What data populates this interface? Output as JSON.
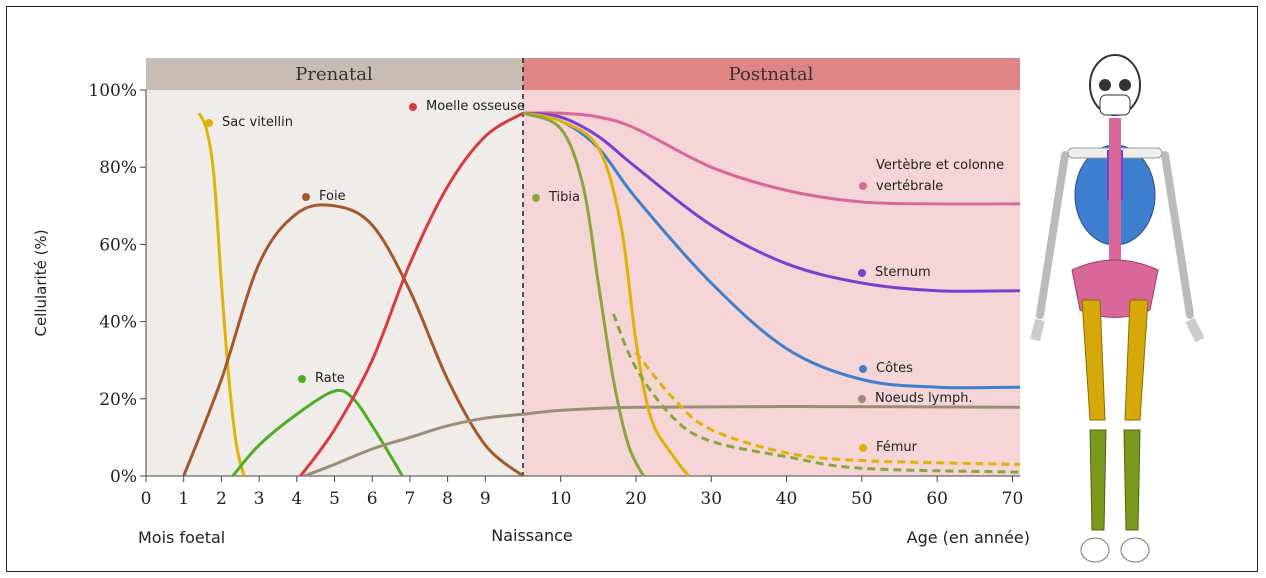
{
  "chart_data": {
    "type": "line",
    "y_label": "Cellularité (%)",
    "band_labels": [
      "Prenatal",
      "Postnatal"
    ],
    "x_label": "Mois foetal",
    "x2_label": "Age (en année)",
    "divider_label": "Naissance",
    "ylim": [
      0,
      100
    ],
    "yticks": [
      {
        "value": 0,
        "label": "0%"
      },
      {
        "value": 20,
        "label": "20%"
      },
      {
        "value": 40,
        "label": "40%"
      },
      {
        "value": 60,
        "label": "60%"
      },
      {
        "value": 80,
        "label": "80%"
      },
      {
        "value": 100,
        "label": "100%"
      }
    ],
    "xlim": [
      0,
      10
    ],
    "xticks": [
      0,
      1,
      2,
      3,
      4,
      5,
      6,
      7,
      8,
      9
    ],
    "x2lim": [
      5,
      71
    ],
    "x2ticks": [
      10,
      20,
      30,
      40,
      50,
      60,
      70
    ],
    "series": [
      {
        "name": "Sac vitellin",
        "color": "#e2b106",
        "segments": [
          {
            "axis": "x",
            "x": [
              1.4,
              1.6,
              1.8,
              2.0,
              2.2,
              2.4,
              2.6
            ],
            "values": [
              94,
              90,
              78,
              50,
              25,
              8,
              0
            ]
          }
        ]
      },
      {
        "name": "Foie",
        "color": "#a3582a",
        "segments": [
          {
            "axis": "x",
            "x": [
              1.0,
              2,
              3,
              4,
              5,
              6,
              7,
              8,
              9,
              10
            ],
            "values": [
              0,
              25,
              55,
              68,
              70,
              65,
              48,
              25,
              8,
              0
            ]
          }
        ]
      },
      {
        "name": "Rate",
        "color": "#4caf22",
        "segments": [
          {
            "axis": "x",
            "x": [
              2.3,
              3,
              4,
              5,
              5.5,
              6,
              6.5,
              6.8
            ],
            "values": [
              0,
              8,
              16,
              22,
              20,
              13,
              5,
              0
            ]
          }
        ]
      },
      {
        "name": "Moelle osseuse",
        "color": "#d83a3e",
        "segments": [
          {
            "axis": "x",
            "x": [
              4.1,
              5,
              6,
              7,
              8,
              9,
              10
            ],
            "values": [
              0,
              12,
              30,
              55,
              75,
              88,
              94
            ]
          }
        ]
      },
      {
        "name": "Noeuds lymph.",
        "color": "#9a8e78",
        "segments": [
          {
            "axis": "x",
            "x": [
              4.2,
              5,
              6,
              7,
              8,
              9,
              10
            ],
            "values": [
              0,
              3,
              7,
              10,
              13,
              15,
              16
            ]
          },
          {
            "axis": "x2",
            "x": [
              5,
              10,
              20,
              40,
              71
            ],
            "values": [
              16,
              17,
              17.8,
              18,
              17.8
            ]
          }
        ]
      },
      {
        "name": "Vertèbre et colonne vertébrale",
        "color": "#d9679a",
        "segments": [
          {
            "axis": "x2",
            "x": [
              5,
              10,
              15,
              20,
              30,
              40,
              50,
              60,
              71
            ],
            "values": [
              94,
              94,
              93,
              90,
              80,
              74,
              71,
              70.5,
              70.5
            ]
          }
        ]
      },
      {
        "name": "Sternum",
        "color": "#7a3fd0",
        "segments": [
          {
            "axis": "x2",
            "x": [
              5,
              10,
              15,
              20,
              30,
              40,
              50,
              60,
              71
            ],
            "values": [
              94,
              93,
              88,
              80,
              65,
              55,
              50,
              48,
              48
            ]
          }
        ]
      },
      {
        "name": "Côtes",
        "color": "#3f7fd0",
        "segments": [
          {
            "axis": "x2",
            "x": [
              5,
              10,
              15,
              20,
              30,
              40,
              50,
              60,
              71
            ],
            "values": [
              94,
              92,
              85,
              72,
              50,
              33,
              25,
              23,
              23
            ]
          }
        ]
      },
      {
        "name": "Fémur",
        "color": "#e2b106",
        "segments": [
          {
            "axis": "x2",
            "x": [
              5,
              10,
              15,
              18,
              20,
              22,
              25,
              27
            ],
            "values": [
              94,
              92,
              85,
              65,
              35,
              15,
              5,
              0
            ]
          },
          {
            "axis": "x2",
            "dashed": true,
            "x": [
              20,
              25,
              30,
              40,
              50,
              71
            ],
            "values": [
              32,
              20,
              12,
              6,
              4,
              3
            ]
          }
        ]
      },
      {
        "name": "Tibia",
        "color": "#86a83a",
        "segments": [
          {
            "axis": "x2",
            "x": [
              5,
              10,
              13,
              15,
              17,
              19,
              21
            ],
            "values": [
              94,
              90,
              75,
              50,
              25,
              8,
              0
            ]
          },
          {
            "axis": "x2",
            "dashed": true,
            "x": [
              17,
              20,
              25,
              30,
              40,
              50,
              71
            ],
            "values": [
              42,
              28,
              15,
              9,
              5,
              2,
              1
            ]
          }
        ]
      }
    ]
  }
}
